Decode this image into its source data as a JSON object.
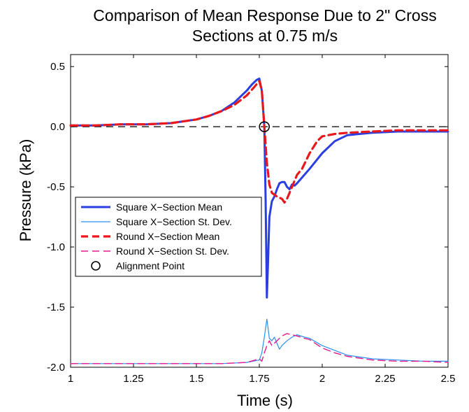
{
  "chart_data": {
    "type": "line",
    "title_lines": [
      "Comparison of Mean Response Due to 2\" Cross",
      "Sections at 0.75 m/s"
    ],
    "xlabel": "Time (s)",
    "ylabel": "Pressure (kPa)",
    "xlim": [
      1,
      2.5
    ],
    "ylim": [
      -2.0,
      0.6
    ],
    "xticks": [
      1,
      1.25,
      1.5,
      1.75,
      2,
      2.25,
      2.5
    ],
    "xtick_labels": [
      "1",
      "1.25",
      "1.5",
      "1.75",
      "2",
      "2.25",
      "2.5"
    ],
    "yticks": [
      0.5,
      0.0,
      -0.5,
      -1.0,
      -1.5,
      -2.0
    ],
    "ytick_labels": [
      "0.5",
      "0.0",
      "-0.5",
      "-1.0",
      "-1.5",
      "-2.0"
    ],
    "grid": false,
    "legend_position": "center-left",
    "reference_line": {
      "y": 0,
      "color": "#000000",
      "dash": "dashed"
    },
    "alignment_point": {
      "x": 1.77,
      "y": 0.0
    },
    "series": [
      {
        "name": "Square X−Section Mean",
        "color": "#2b3fe0",
        "style": "solid-thick",
        "x": [
          1.0,
          1.1,
          1.2,
          1.3,
          1.4,
          1.5,
          1.55,
          1.6,
          1.65,
          1.7,
          1.72,
          1.74,
          1.75,
          1.76,
          1.77,
          1.775,
          1.78,
          1.785,
          1.79,
          1.8,
          1.81,
          1.82,
          1.83,
          1.84,
          1.85,
          1.86,
          1.87,
          1.88,
          1.89,
          1.9,
          1.95,
          2.0,
          2.05,
          2.1,
          2.2,
          2.3,
          2.4,
          2.5
        ],
        "y": [
          0.01,
          0.01,
          0.02,
          0.02,
          0.03,
          0.06,
          0.09,
          0.13,
          0.2,
          0.3,
          0.35,
          0.39,
          0.4,
          0.3,
          0.0,
          -0.6,
          -1.42,
          -1.1,
          -0.75,
          -0.62,
          -0.58,
          -0.52,
          -0.47,
          -0.46,
          -0.46,
          -0.5,
          -0.52,
          -0.48,
          -0.49,
          -0.47,
          -0.35,
          -0.22,
          -0.12,
          -0.07,
          -0.05,
          -0.04,
          -0.04,
          -0.04
        ]
      },
      {
        "name": "Square X−Section St. Dev.",
        "color": "#2b8ff0",
        "style": "solid-thin",
        "x": [
          1.0,
          1.2,
          1.4,
          1.6,
          1.7,
          1.75,
          1.76,
          1.77,
          1.78,
          1.79,
          1.8,
          1.81,
          1.82,
          1.83,
          1.84,
          1.86,
          1.88,
          1.9,
          1.93,
          1.95,
          2.0,
          2.05,
          2.1,
          2.2,
          2.3,
          2.4,
          2.5
        ],
        "y": [
          -1.97,
          -1.97,
          -1.97,
          -1.97,
          -1.96,
          -1.94,
          -1.88,
          -1.75,
          -1.6,
          -1.76,
          -1.78,
          -1.75,
          -1.8,
          -1.85,
          -1.82,
          -1.78,
          -1.75,
          -1.73,
          -1.75,
          -1.76,
          -1.82,
          -1.86,
          -1.9,
          -1.93,
          -1.94,
          -1.95,
          -1.95
        ]
      },
      {
        "name": "Round X−Section Mean",
        "color": "#e8191c",
        "style": "dashed-thick",
        "x": [
          1.0,
          1.1,
          1.2,
          1.3,
          1.4,
          1.5,
          1.55,
          1.6,
          1.65,
          1.7,
          1.73,
          1.75,
          1.76,
          1.77,
          1.78,
          1.79,
          1.8,
          1.82,
          1.84,
          1.85,
          1.86,
          1.87,
          1.88,
          1.9,
          1.92,
          1.95,
          1.98,
          2.0,
          2.05,
          2.1,
          2.2,
          2.3,
          2.4,
          2.5
        ],
        "y": [
          0.01,
          0.01,
          0.02,
          0.02,
          0.03,
          0.06,
          0.09,
          0.13,
          0.18,
          0.26,
          0.33,
          0.38,
          0.3,
          0.0,
          -0.3,
          -0.48,
          -0.55,
          -0.58,
          -0.6,
          -0.63,
          -0.6,
          -0.55,
          -0.5,
          -0.4,
          -0.35,
          -0.22,
          -0.12,
          -0.08,
          -0.06,
          -0.05,
          -0.04,
          -0.03,
          -0.03,
          -0.03
        ]
      },
      {
        "name": "Round X−Section St. Dev.",
        "color": "#e6198c",
        "style": "dashed-thin",
        "x": [
          1.0,
          1.2,
          1.4,
          1.6,
          1.7,
          1.75,
          1.76,
          1.77,
          1.78,
          1.79,
          1.8,
          1.82,
          1.84,
          1.86,
          1.88,
          1.9,
          1.93,
          1.95,
          2.0,
          2.05,
          2.1,
          2.2,
          2.3,
          2.4,
          2.5
        ],
        "y": [
          -1.97,
          -1.97,
          -1.97,
          -1.97,
          -1.96,
          -1.93,
          -1.95,
          -1.88,
          -1.82,
          -1.78,
          -1.82,
          -1.78,
          -1.74,
          -1.72,
          -1.73,
          -1.74,
          -1.76,
          -1.77,
          -1.84,
          -1.88,
          -1.91,
          -1.94,
          -1.95,
          -1.95,
          -1.96
        ]
      }
    ],
    "legend": [
      {
        "label": "Square X−Section Mean",
        "color": "#2b3fe0",
        "style": "solid-thick"
      },
      {
        "label": "Square X−Section St. Dev.",
        "color": "#2b8ff0",
        "style": "solid-thin"
      },
      {
        "label": "Round X−Section Mean",
        "color": "#e8191c",
        "style": "dashed-thick"
      },
      {
        "label": "Round X−Section St. Dev.",
        "color": "#e6198c",
        "style": "dashed-thin"
      },
      {
        "label": "Alignment Point",
        "color": "#000000",
        "style": "circle"
      }
    ]
  }
}
